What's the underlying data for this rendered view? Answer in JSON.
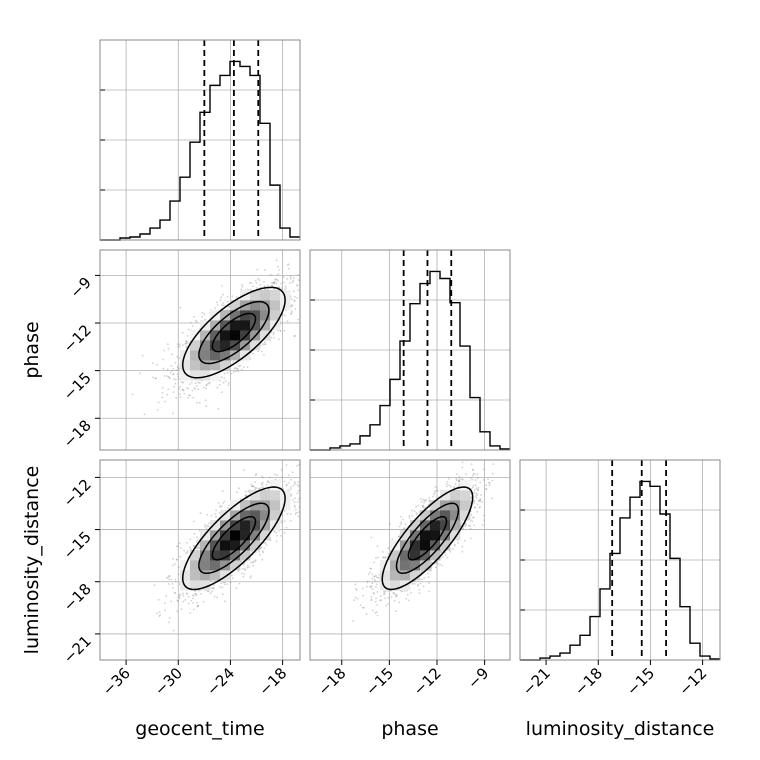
{
  "chart_data": {
    "type": "corner",
    "parameters": [
      "geocent_time",
      "phase",
      "luminosity_distance"
    ],
    "axis_labels": {
      "x": [
        "geocent_time",
        "phase",
        "luminosity_distance"
      ],
      "y": [
        "",
        "phase",
        "luminosity_distance"
      ]
    },
    "ranges": {
      "geocent_time": [
        -39.0,
        -16.0
      ],
      "phase": [
        -20.0,
        -7.4
      ],
      "luminosity_distance": [
        -22.5,
        -11.0
      ]
    },
    "ticks": {
      "geocent_time": [
        -36,
        -30,
        -24,
        -18
      ],
      "phase": [
        -18,
        -15,
        -12,
        -9
      ],
      "luminosity_distance": [
        -21,
        -18,
        -15,
        -12
      ]
    },
    "tick_labels": {
      "geocent_time": [
        "−36",
        "−30",
        "−24",
        "−18"
      ],
      "phase": [
        "−18",
        "−15",
        "−12",
        "−9"
      ],
      "luminosity_distance": [
        "−21",
        "−18",
        "−15",
        "−12"
      ]
    },
    "quantiles": {
      "geocent_time": [
        -27.0,
        -23.6,
        -20.8
      ],
      "phase": [
        -14.1,
        -12.6,
        -11.1
      ],
      "luminosity_distance": [
        -17.2,
        -15.5,
        -14.1
      ]
    },
    "histograms": {
      "geocent_time": {
        "edges": [
          -39.0,
          -37.85,
          -36.7,
          -35.55,
          -34.4,
          -33.25,
          -32.1,
          -30.95,
          -29.8,
          -28.65,
          -27.5,
          -26.35,
          -25.2,
          -24.05,
          -22.9,
          -21.75,
          -20.6,
          -19.45,
          -18.3,
          -17.15,
          -16.0
        ],
        "counts": [
          0,
          0,
          2,
          3,
          6,
          12,
          20,
          39,
          63,
          98,
          128,
          155,
          165,
          179,
          174,
          165,
          117,
          55,
          12,
          3
        ]
      },
      "phase": {
        "edges": [
          -20.0,
          -19.37,
          -18.74,
          -18.11,
          -17.48,
          -16.85,
          -16.22,
          -15.59,
          -14.96,
          -14.33,
          -13.7,
          -13.07,
          -12.44,
          -11.81,
          -11.18,
          -10.55,
          -9.92,
          -9.29,
          -8.66,
          -8.03,
          -7.4
        ],
        "counts": [
          0,
          0,
          2,
          4,
          6,
          14,
          25,
          44,
          70,
          108,
          145,
          165,
          177,
          170,
          146,
          103,
          52,
          18,
          4,
          1
        ]
      },
      "luminosity_distance": {
        "edges": [
          -22.5,
          -21.925,
          -21.35,
          -20.775,
          -20.2,
          -19.625,
          -19.05,
          -18.475,
          -17.9,
          -17.325,
          -16.75,
          -16.175,
          -15.6,
          -15.025,
          -14.45,
          -13.875,
          -13.3,
          -12.725,
          -12.15,
          -11.575,
          -11.0
        ],
        "counts": [
          0,
          0,
          2,
          4,
          7,
          15,
          25,
          44,
          72,
          108,
          144,
          165,
          181,
          176,
          148,
          103,
          54,
          17,
          4,
          1
        ]
      }
    },
    "correlations": {
      "phase|geocent_time": 0.72,
      "luminosity_distance|geocent_time": 0.78,
      "luminosity_distance|phase": 0.8
    },
    "grid": true,
    "colors": {
      "line": "#000000",
      "density": "#000000",
      "points": "#9a9a9a",
      "grid": "#b0b0b0"
    }
  }
}
